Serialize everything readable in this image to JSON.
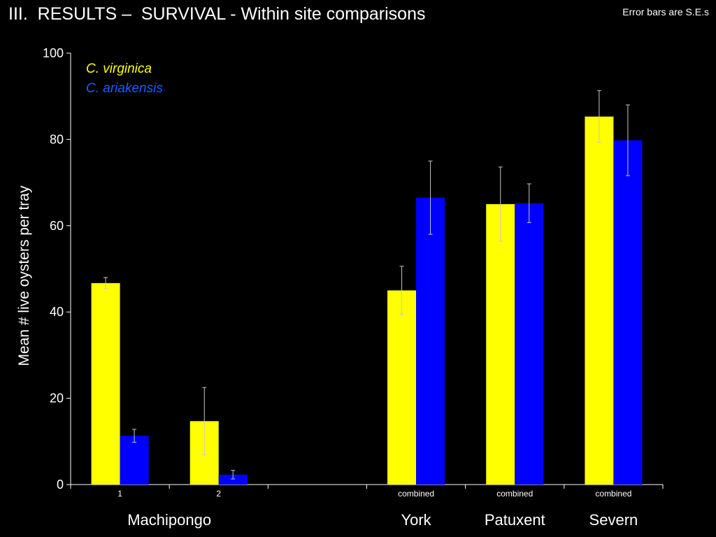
{
  "header": {
    "title": "III.  RESULTS –  SURVIVAL - Within site comparisons",
    "note": "Error bars are S.E.s"
  },
  "chart_data": {
    "type": "bar",
    "title": "",
    "ylabel": "Mean # live oysters per tray",
    "xlabel": "",
    "ylim": [
      0,
      100
    ],
    "yticks": [
      0,
      20,
      40,
      60,
      80,
      100
    ],
    "grid": false,
    "legend_position": "top-left",
    "categories": [
      "1",
      "2",
      "",
      "combined",
      "combined",
      "combined"
    ],
    "groups": [
      {
        "label": "Machipongo",
        "categories": [
          0,
          1
        ]
      },
      {
        "label": "York",
        "categories": [
          3
        ]
      },
      {
        "label": "Patuxent",
        "categories": [
          4
        ]
      },
      {
        "label": "Severn",
        "categories": [
          5
        ]
      }
    ],
    "series": [
      {
        "name": "C. virginica",
        "color": "#ffff00",
        "values": [
          46.7,
          14.7,
          null,
          45.0,
          65.0,
          85.3
        ],
        "errors": [
          1.3,
          7.8,
          null,
          5.6,
          8.6,
          6.0
        ]
      },
      {
        "name": "C. ariakensis",
        "color": "#0000ff",
        "legend_color": "#1f5cff",
        "values": [
          11.3,
          2.3,
          null,
          66.5,
          65.2,
          79.8
        ],
        "errors": [
          1.5,
          1.0,
          null,
          8.5,
          4.5,
          8.2
        ]
      }
    ]
  }
}
